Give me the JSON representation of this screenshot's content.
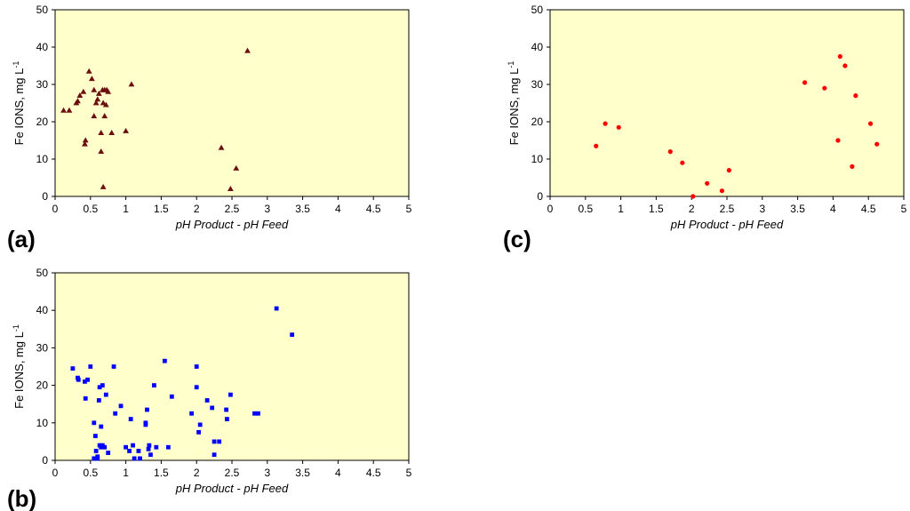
{
  "figure": {
    "background": "#ffffff",
    "plot_bg": "#ffffcc"
  },
  "chart_data": [
    {
      "panel": "(a)",
      "type": "scatter",
      "marker": "triangle",
      "color": "#6b0f0f",
      "xlabel": "pH Product - pH Feed",
      "ylabel": "Fe IONS, mg L",
      "ylabel_sup": "-1",
      "xlim": [
        0,
        5
      ],
      "ylim": [
        0,
        50
      ],
      "xticks": [
        "0",
        "0.5",
        "1",
        "1.5",
        "2",
        "2.5",
        "3",
        "3.5",
        "4",
        "4.5",
        "5"
      ],
      "yticks": [
        "0",
        "10",
        "20",
        "30",
        "40",
        "50"
      ],
      "points": [
        [
          0.12,
          23
        ],
        [
          0.2,
          23
        ],
        [
          0.3,
          25
        ],
        [
          0.32,
          25.5
        ],
        [
          0.35,
          27
        ],
        [
          0.4,
          28
        ],
        [
          0.42,
          14
        ],
        [
          0.43,
          15
        ],
        [
          0.48,
          33.5
        ],
        [
          0.52,
          31.5
        ],
        [
          0.55,
          21.5
        ],
        [
          0.55,
          28.5
        ],
        [
          0.58,
          25
        ],
        [
          0.6,
          26
        ],
        [
          0.62,
          27.5
        ],
        [
          0.65,
          17
        ],
        [
          0.65,
          12
        ],
        [
          0.67,
          28.5
        ],
        [
          0.68,
          25
        ],
        [
          0.7,
          28.5
        ],
        [
          0.7,
          21.5
        ],
        [
          0.72,
          24.5
        ],
        [
          0.73,
          28.5
        ],
        [
          0.75,
          28
        ],
        [
          0.68,
          2.5
        ],
        [
          0.8,
          17
        ],
        [
          1.0,
          17.5
        ],
        [
          1.08,
          30
        ],
        [
          2.35,
          13
        ],
        [
          2.48,
          2
        ],
        [
          2.56,
          7.5
        ],
        [
          2.72,
          39
        ]
      ]
    },
    {
      "panel": "(b)",
      "type": "scatter",
      "marker": "square",
      "color": "#0000ff",
      "xlabel": "pH Product - pH Feed",
      "ylabel": "Fe IONS, mg L",
      "ylabel_sup": "-1",
      "xlim": [
        0,
        5
      ],
      "ylim": [
        0,
        50
      ],
      "xticks": [
        "0",
        "0.5",
        "1",
        "1.5",
        "2",
        "2.5",
        "3",
        "3.5",
        "4",
        "4.5",
        "5"
      ],
      "yticks": [
        "0",
        "10",
        "20",
        "30",
        "40",
        "50"
      ],
      "points": [
        [
          0.25,
          24.5
        ],
        [
          0.32,
          22
        ],
        [
          0.33,
          21.5
        ],
        [
          0.42,
          21
        ],
        [
          0.43,
          16.5
        ],
        [
          0.46,
          21.5
        ],
        [
          0.5,
          25
        ],
        [
          0.55,
          10
        ],
        [
          0.57,
          6.5
        ],
        [
          0.55,
          0.5
        ],
        [
          0.58,
          2.5
        ],
        [
          0.6,
          0.5
        ],
        [
          0.6,
          1
        ],
        [
          0.62,
          16
        ],
        [
          0.63,
          19.5
        ],
        [
          0.63,
          4
        ],
        [
          0.65,
          3.5
        ],
        [
          0.65,
          9
        ],
        [
          0.67,
          20
        ],
        [
          0.67,
          4
        ],
        [
          0.7,
          3.5
        ],
        [
          0.72,
          17.5
        ],
        [
          0.75,
          2
        ],
        [
          0.83,
          25
        ],
        [
          0.85,
          12.5
        ],
        [
          0.93,
          14.5
        ],
        [
          1.0,
          3.5
        ],
        [
          1.05,
          2.5
        ],
        [
          1.07,
          11
        ],
        [
          1.1,
          4
        ],
        [
          1.12,
          0.5
        ],
        [
          1.18,
          2.5
        ],
        [
          1.2,
          0.5
        ],
        [
          1.28,
          10
        ],
        [
          1.28,
          9.5
        ],
        [
          1.3,
          13.5
        ],
        [
          1.32,
          3
        ],
        [
          1.33,
          4
        ],
        [
          1.35,
          1.5
        ],
        [
          1.4,
          20
        ],
        [
          1.43,
          3.5
        ],
        [
          1.55,
          26.5
        ],
        [
          1.6,
          3.5
        ],
        [
          1.65,
          17
        ],
        [
          1.93,
          12.5
        ],
        [
          2.0,
          25
        ],
        [
          2.0,
          19.5
        ],
        [
          2.03,
          7.5
        ],
        [
          2.05,
          9.5
        ],
        [
          2.15,
          16
        ],
        [
          2.22,
          14
        ],
        [
          2.25,
          5
        ],
        [
          2.25,
          1.5
        ],
        [
          2.32,
          5
        ],
        [
          2.42,
          13.5
        ],
        [
          2.43,
          11
        ],
        [
          2.48,
          17.5
        ],
        [
          2.82,
          12.5
        ],
        [
          2.87,
          12.5
        ],
        [
          3.13,
          40.5
        ],
        [
          3.35,
          33.5
        ]
      ]
    },
    {
      "panel": "(c)",
      "type": "scatter",
      "marker": "circle",
      "color": "#ff0000",
      "xlabel": "pH Product - pH Feed",
      "ylabel": "Fe IONS, mg L",
      "ylabel_sup": "-1",
      "xlim": [
        0,
        5
      ],
      "ylim": [
        0,
        50
      ],
      "xticks": [
        "0",
        "0.5",
        "1",
        "1.5",
        "2",
        "2.5",
        "3",
        "3.5",
        "4",
        "4.5",
        "5"
      ],
      "yticks": [
        "0",
        "10",
        "20",
        "30",
        "40",
        "50"
      ],
      "points": [
        [
          0.65,
          13.5
        ],
        [
          0.78,
          19.5
        ],
        [
          0.97,
          18.5
        ],
        [
          1.7,
          12
        ],
        [
          1.87,
          9
        ],
        [
          2.02,
          0
        ],
        [
          2.22,
          3.5
        ],
        [
          2.43,
          1.5
        ],
        [
          2.53,
          7
        ],
        [
          3.6,
          30.5
        ],
        [
          3.88,
          29
        ],
        [
          4.07,
          15
        ],
        [
          4.1,
          37.5
        ],
        [
          4.17,
          35
        ],
        [
          4.27,
          8
        ],
        [
          4.32,
          27
        ],
        [
          4.53,
          19.5
        ],
        [
          4.62,
          14
        ]
      ]
    }
  ]
}
